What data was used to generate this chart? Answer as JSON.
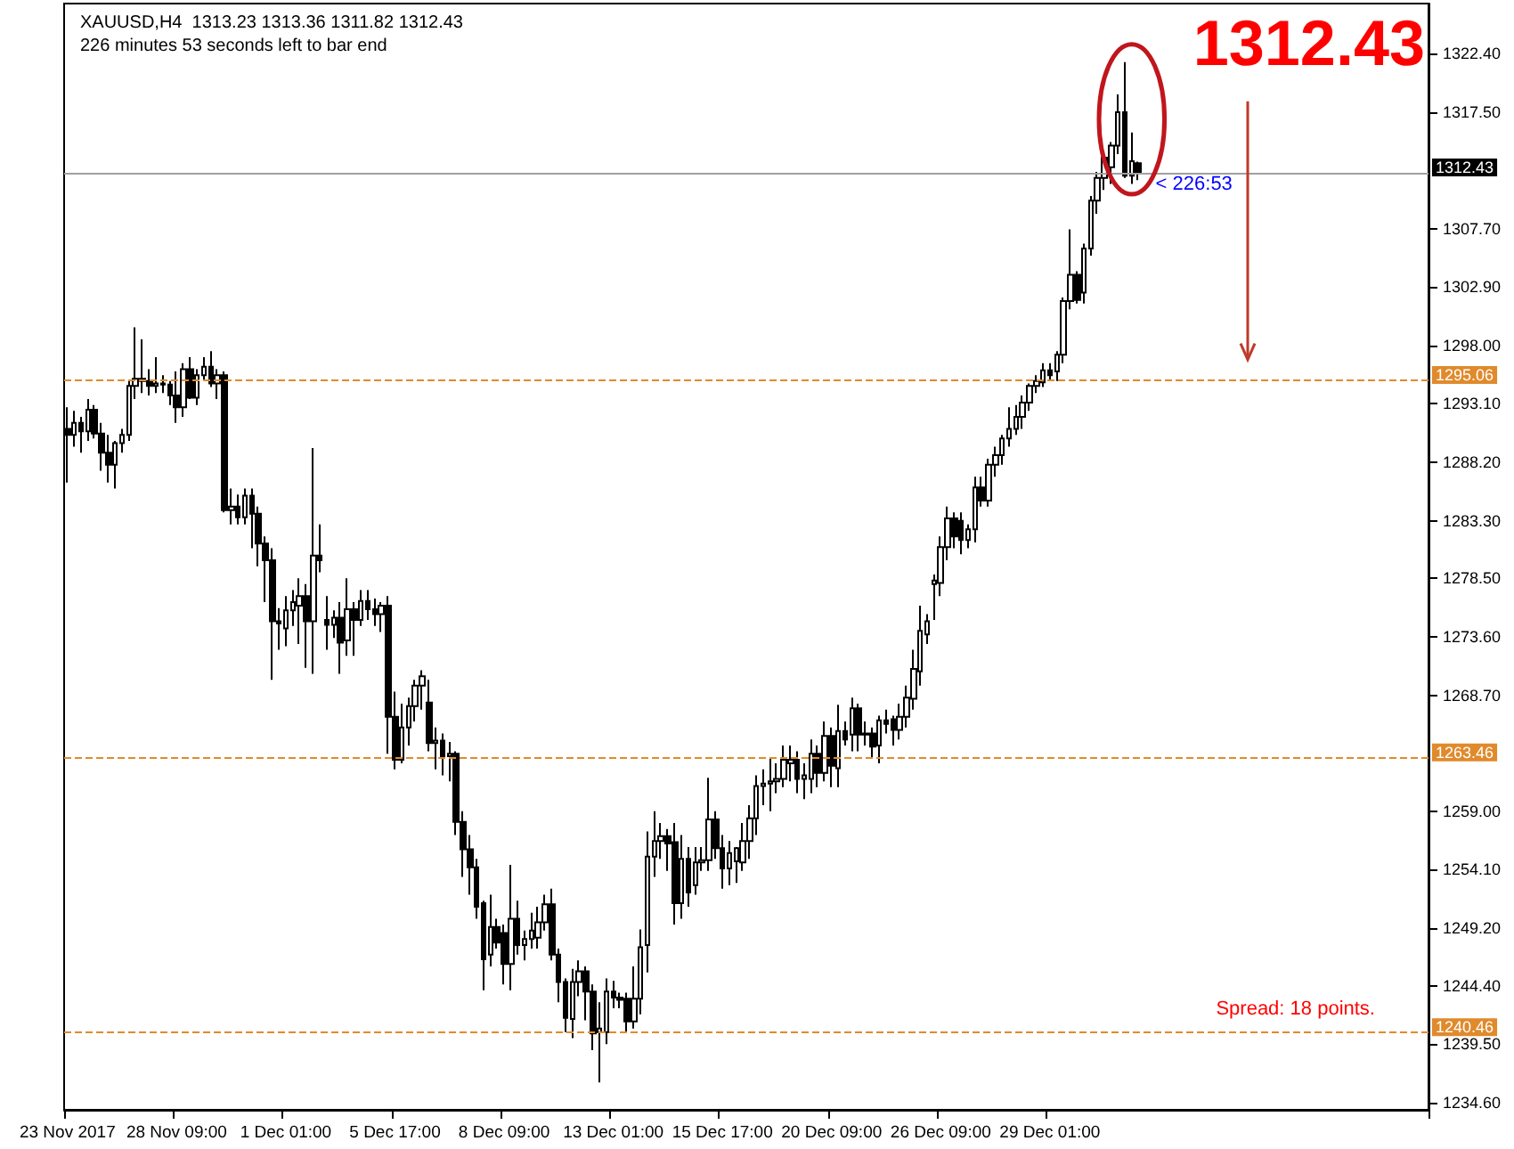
{
  "chart_data": {
    "type": "candlestick",
    "title": "XAUUSD,H4  1313.23 1313.36 1311.82 1312.43",
    "subtitle": "226 minutes 53 seconds left to bar end",
    "categories": [
      "23 Nov 2017",
      null,
      null,
      null,
      null,
      null,
      null,
      null,
      null,
      null,
      null,
      null,
      null,
      null,
      null,
      null,
      "28 Nov 09:00",
      null,
      null,
      null,
      null,
      null,
      null,
      null,
      null,
      null,
      null,
      null,
      null,
      null,
      null,
      null,
      "1 Dec 01:00",
      null,
      null,
      null,
      null,
      null,
      null,
      null,
      null,
      null,
      null,
      null,
      null,
      null,
      null,
      null,
      "5 Dec 17:00",
      null,
      null,
      null,
      null,
      null,
      null,
      null,
      null,
      null,
      null,
      null,
      null,
      null,
      null,
      null,
      "8 Dec 09:00",
      null,
      null,
      null,
      null,
      null,
      null,
      null,
      null,
      null,
      null,
      null,
      null,
      null,
      null,
      null,
      "13 Dec 01:00",
      null,
      null,
      null,
      null,
      null,
      null,
      null,
      null,
      null,
      null,
      null,
      null,
      null,
      null,
      null,
      "15 Dec 17:00",
      null,
      null,
      null,
      null,
      null,
      null,
      null,
      null,
      null,
      null,
      null,
      null,
      null,
      null,
      null,
      "20 Dec 09:00",
      null,
      null,
      null,
      null,
      null,
      null,
      null,
      null,
      null,
      null,
      null,
      null,
      null,
      null,
      null,
      "26 Dec 09:00",
      null,
      null,
      null,
      null,
      null,
      null,
      null,
      null,
      null,
      null,
      null,
      null,
      null,
      null,
      null,
      "29 Dec 01:00",
      null,
      null,
      null,
      null,
      null,
      null,
      null,
      null,
      null,
      null,
      null,
      null,
      null,
      null,
      null,
      null,
      null,
      null,
      null,
      null,
      null,
      null,
      null,
      null,
      null,
      null,
      null,
      null,
      null,
      null,
      null,
      null,
      null,
      null,
      null,
      null,
      null,
      null,
      null,
      null,
      null,
      null,
      null,
      null,
      null,
      null,
      null,
      null,
      null,
      null,
      null,
      null,
      null,
      null,
      null
    ],
    "ohlc": [
      [
        1291.0,
        1292.8,
        1286.5,
        1290.5
      ],
      [
        1290.5,
        1292.5,
        1289.5,
        1291.5
      ],
      [
        1291.5,
        1292.0,
        1289.0,
        1290.8
      ],
      [
        1290.8,
        1293.5,
        1290.0,
        1292.6
      ],
      [
        1292.6,
        1293.0,
        1290.2,
        1290.6
      ],
      [
        1290.6,
        1291.5,
        1287.5,
        1289.0
      ],
      [
        1289.0,
        1290.5,
        1286.5,
        1288.0
      ],
      [
        1288.0,
        1290.0,
        1286.0,
        1289.8
      ],
      [
        1289.8,
        1291.0,
        1289.0,
        1290.5
      ],
      [
        1290.5,
        1295.0,
        1290.0,
        1294.6
      ],
      [
        1294.6,
        1299.5,
        1293.5,
        1295.2
      ],
      [
        1295.2,
        1298.5,
        1294.0,
        1295.0
      ],
      [
        1295.0,
        1296.0,
        1293.8,
        1294.6
      ],
      [
        1294.6,
        1297.0,
        1294.0,
        1294.8
      ],
      [
        1294.8,
        1295.5,
        1294.0,
        1294.7
      ],
      [
        1294.7,
        1295.0,
        1293.0,
        1293.8
      ],
      [
        1293.8,
        1295.8,
        1291.5,
        1292.8
      ],
      [
        1292.8,
        1296.5,
        1292.0,
        1296.0
      ],
      [
        1296.0,
        1297.0,
        1293.5,
        1293.6
      ],
      [
        1293.6,
        1296.0,
        1293.0,
        1295.5
      ],
      [
        1295.5,
        1297.0,
        1295.0,
        1296.2
      ],
      [
        1296.2,
        1297.5,
        1294.5,
        1294.8
      ],
      [
        1294.8,
        1296.0,
        1293.5,
        1295.5
      ],
      [
        1295.5,
        1295.8,
        1284.0,
        1284.2
      ],
      [
        1284.2,
        1286.0,
        1283.0,
        1284.5
      ],
      [
        1284.5,
        1285.5,
        1283.0,
        1283.6
      ],
      [
        1283.6,
        1286.0,
        1283.0,
        1285.4
      ],
      [
        1285.4,
        1286.0,
        1281.0,
        1283.9
      ],
      [
        1283.9,
        1284.5,
        1279.5,
        1281.4
      ],
      [
        1281.4,
        1282.0,
        1276.5,
        1280.0
      ],
      [
        1280.0,
        1281.0,
        1270.0,
        1274.9
      ],
      [
        1274.9,
        1276.0,
        1272.5,
        1274.7
      ],
      [
        1274.3,
        1277.0,
        1272.8,
        1275.8
      ],
      [
        1275.8,
        1277.5,
        1274.5,
        1276.5
      ],
      [
        1276.2,
        1278.5,
        1273.0,
        1277.0
      ],
      [
        1277.0,
        1278.0,
        1271.0,
        1274.9
      ],
      [
        1274.9,
        1289.4,
        1270.5,
        1280.4
      ],
      [
        1280.4,
        1283.0,
        1279.0,
        1280.0
      ],
      [
        1275.0,
        1277.0,
        1272.5,
        1274.6
      ],
      [
        1274.6,
        1275.8,
        1273.5,
        1275.2
      ],
      [
        1275.2,
        1276.5,
        1270.5,
        1273.1
      ],
      [
        1273.3,
        1278.5,
        1272.0,
        1275.9
      ],
      [
        1275.9,
        1276.5,
        1272.0,
        1275.0
      ],
      [
        1275.0,
        1277.5,
        1274.5,
        1276.6
      ],
      [
        1276.6,
        1277.5,
        1275.0,
        1275.9
      ],
      [
        1275.9,
        1276.8,
        1274.5,
        1275.5
      ],
      [
        1275.5,
        1276.5,
        1274.0,
        1276.2
      ],
      [
        1276.2,
        1277.0,
        1263.8,
        1266.9
      ],
      [
        1266.9,
        1269.0,
        1262.5,
        1263.3
      ],
      [
        1263.3,
        1268.0,
        1263.0,
        1266.0
      ],
      [
        1266.0,
        1268.5,
        1264.5,
        1267.8
      ],
      [
        1267.8,
        1270.0,
        1266.5,
        1269.5
      ],
      [
        1269.5,
        1270.8,
        1267.5,
        1270.3
      ],
      [
        1268.1,
        1270.0,
        1264.0,
        1264.7
      ],
      [
        1264.7,
        1266.0,
        1262.5,
        1264.9
      ],
      [
        1264.9,
        1265.5,
        1262.0,
        1263.6
      ],
      [
        1263.6,
        1264.8,
        1261.5,
        1263.8
      ],
      [
        1263.8,
        1264.0,
        1257.0,
        1258.1
      ],
      [
        1258.1,
        1259.0,
        1253.5,
        1255.8
      ],
      [
        1255.8,
        1257.0,
        1252.0,
        1254.3
      ],
      [
        1254.3,
        1255.0,
        1250.0,
        1251.0
      ],
      [
        1251.3,
        1251.5,
        1244.0,
        1246.6
      ],
      [
        1247.0,
        1252.0,
        1246.0,
        1249.3
      ],
      [
        1249.3,
        1250.0,
        1247.5,
        1248.0
      ],
      [
        1248.8,
        1249.5,
        1244.5,
        1246.2
      ],
      [
        1246.2,
        1254.5,
        1244.0,
        1250.0
      ],
      [
        1250.0,
        1251.5,
        1247.0,
        1247.8
      ],
      [
        1247.8,
        1249.0,
        1246.5,
        1248.3
      ],
      [
        1248.3,
        1250.5,
        1247.5,
        1249.0
      ],
      [
        1248.4,
        1251.0,
        1247.5,
        1249.7
      ],
      [
        1249.7,
        1252.0,
        1249.0,
        1251.2
      ],
      [
        1251.2,
        1252.5,
        1246.5,
        1247.0
      ],
      [
        1247.0,
        1247.5,
        1243.0,
        1244.7
      ],
      [
        1244.7,
        1245.0,
        1240.5,
        1241.7
      ],
      [
        1241.6,
        1245.8,
        1240.0,
        1244.7
      ],
      [
        1244.7,
        1246.5,
        1243.5,
        1245.6
      ],
      [
        1245.6,
        1246.0,
        1241.5,
        1243.9
      ],
      [
        1243.9,
        1244.5,
        1239.0,
        1240.4
      ],
      [
        1240.5,
        1243.0,
        1236.3,
        1240.8
      ],
      [
        1240.5,
        1245.0,
        1239.5,
        1243.9
      ],
      [
        1243.9,
        1244.8,
        1242.5,
        1243.4
      ],
      [
        1243.4,
        1243.8,
        1242.5,
        1243.2
      ],
      [
        1243.3,
        1243.8,
        1240.5,
        1241.4
      ],
      [
        1241.4,
        1246.0,
        1240.8,
        1243.3
      ],
      [
        1243.3,
        1249.1,
        1242.0,
        1247.6
      ],
      [
        1247.8,
        1257.3,
        1245.5,
        1255.2
      ],
      [
        1255.2,
        1259.0,
        1253.5,
        1256.5
      ],
      [
        1256.5,
        1258.0,
        1255.0,
        1256.9
      ],
      [
        1256.9,
        1257.5,
        1254.0,
        1256.3
      ],
      [
        1256.4,
        1258.0,
        1249.5,
        1251.3
      ],
      [
        1251.3,
        1257.0,
        1250.0,
        1255.0
      ],
      [
        1255.0,
        1256.0,
        1251.0,
        1252.2
      ],
      [
        1252.8,
        1256.0,
        1252.0,
        1254.7
      ],
      [
        1254.7,
        1256.0,
        1254.0,
        1254.9
      ],
      [
        1254.9,
        1261.8,
        1254.0,
        1258.3
      ],
      [
        1258.3,
        1259.0,
        1255.0,
        1255.9
      ],
      [
        1255.9,
        1257.0,
        1252.5,
        1254.2
      ],
      [
        1254.2,
        1256.5,
        1252.8,
        1255.5
      ],
      [
        1254.8,
        1256.0,
        1253.0,
        1255.9
      ],
      [
        1254.7,
        1258.0,
        1254.0,
        1256.5
      ],
      [
        1256.5,
        1259.5,
        1255.0,
        1258.4
      ],
      [
        1258.4,
        1262.0,
        1257.0,
        1261.1
      ],
      [
        1261.1,
        1262.5,
        1259.5,
        1261.3
      ],
      [
        1261.3,
        1263.5,
        1259.0,
        1261.5
      ],
      [
        1261.5,
        1263.0,
        1260.5,
        1261.7
      ],
      [
        1261.7,
        1264.5,
        1261.0,
        1263.3
      ],
      [
        1263.0,
        1264.5,
        1261.5,
        1263.3
      ],
      [
        1263.3,
        1264.0,
        1260.5,
        1261.7
      ],
      [
        1261.7,
        1263.0,
        1260.0,
        1262.0
      ],
      [
        1261.7,
        1265.0,
        1260.5,
        1263.8
      ],
      [
        1263.8,
        1264.5,
        1261.0,
        1262.2
      ],
      [
        1262.2,
        1266.5,
        1261.5,
        1265.3
      ],
      [
        1265.3,
        1266.0,
        1261.0,
        1262.8
      ],
      [
        1262.6,
        1267.9,
        1261.0,
        1265.7
      ],
      [
        1265.7,
        1266.5,
        1264.5,
        1265.0
      ],
      [
        1265.4,
        1268.5,
        1264.0,
        1267.6
      ],
      [
        1267.6,
        1268.0,
        1264.0,
        1265.4
      ],
      [
        1265.4,
        1266.5,
        1264.5,
        1265.5
      ],
      [
        1265.5,
        1266.0,
        1263.5,
        1264.4
      ],
      [
        1264.5,
        1267.0,
        1263.0,
        1266.6
      ],
      [
        1266.6,
        1267.5,
        1265.5,
        1266.3
      ],
      [
        1266.7,
        1267.0,
        1264.5,
        1265.8
      ],
      [
        1265.8,
        1268.0,
        1265.0,
        1266.9
      ],
      [
        1266.9,
        1269.5,
        1266.0,
        1268.5
      ],
      [
        1268.4,
        1272.5,
        1267.5,
        1270.9
      ],
      [
        1270.7,
        1276.2,
        1269.5,
        1274.1
      ],
      [
        1273.8,
        1275.5,
        1273.0,
        1274.9
      ],
      [
        1278.0,
        1278.8,
        1275.0,
        1278.3
      ],
      [
        1278.1,
        1282.0,
        1277.0,
        1281.1
      ],
      [
        1281.1,
        1284.5,
        1280.0,
        1283.5
      ],
      [
        1283.5,
        1284.0,
        1281.0,
        1282.0
      ],
      [
        1283.3,
        1284.0,
        1280.5,
        1281.7
      ],
      [
        1281.7,
        1283.0,
        1281.0,
        1282.6
      ],
      [
        1282.6,
        1287.0,
        1281.5,
        1286.1
      ],
      [
        1286.1,
        1287.0,
        1284.5,
        1285.0
      ],
      [
        1285.0,
        1288.5,
        1284.5,
        1288.0
      ],
      [
        1288.0,
        1289.5,
        1287.0,
        1288.8
      ],
      [
        1288.8,
        1290.5,
        1288.0,
        1290.2
      ],
      [
        1290.2,
        1292.8,
        1289.5,
        1291.0
      ],
      [
        1291.0,
        1293.0,
        1290.5,
        1292.0
      ],
      [
        1292.0,
        1293.8,
        1291.0,
        1293.2
      ],
      [
        1293.2,
        1294.8,
        1292.5,
        1294.6
      ],
      [
        1294.6,
        1295.5,
        1294.0,
        1295.0
      ],
      [
        1294.9,
        1296.5,
        1294.5,
        1295.9
      ],
      [
        1295.9,
        1296.5,
        1295.0,
        1295.5
      ],
      [
        1295.8,
        1297.5,
        1295.0,
        1297.2
      ],
      [
        1297.2,
        1302.0,
        1296.5,
        1301.7
      ],
      [
        1301.7,
        1307.7,
        1301.0,
        1303.9
      ],
      [
        1303.9,
        1304.2,
        1301.5,
        1301.8
      ],
      [
        1302.4,
        1306.5,
        1301.5,
        1306.1
      ],
      [
        1306.1,
        1310.5,
        1305.5,
        1310.1
      ],
      [
        1310.1,
        1312.5,
        1309.0,
        1312.0
      ],
      [
        1312.0,
        1314.0,
        1311.0,
        1313.7
      ],
      [
        1312.9,
        1315.0,
        1311.5,
        1314.7
      ],
      [
        1314.7,
        1319.0,
        1314.0,
        1317.5
      ],
      [
        1317.5,
        1321.7,
        1312.0,
        1312.2
      ],
      [
        1312.2,
        1315.8,
        1311.5,
        1313.4
      ],
      [
        1313.23,
        1313.36,
        1311.82,
        1312.43
      ],
      null,
      null,
      null,
      null,
      null,
      null,
      null,
      null,
      null,
      null,
      null,
      null,
      null,
      null,
      null,
      null,
      null,
      null,
      null,
      null,
      null,
      null,
      null,
      null,
      null,
      null,
      null,
      null,
      null,
      null,
      null,
      null,
      null,
      null,
      null,
      null,
      null,
      null,
      null,
      null,
      null,
      null
    ],
    "ylim": [
      1234.0,
      1326.6
    ],
    "yticks": [
      {
        "value": 1322.4,
        "label": "1322.40"
      },
      {
        "value": 1317.5,
        "label": "1317.50"
      },
      {
        "value": 1307.7,
        "label": "1307.70"
      },
      {
        "value": 1302.9,
        "label": "1302.90"
      },
      {
        "value": 1298.0,
        "label": "1298.00"
      },
      {
        "value": 1293.1,
        "label": "1293.10"
      },
      {
        "value": 1288.2,
        "label": "1288.20"
      },
      {
        "value": 1283.3,
        "label": "1283.30"
      },
      {
        "value": 1278.5,
        "label": "1278.50"
      },
      {
        "value": 1273.6,
        "label": "1273.60"
      },
      {
        "value": 1268.7,
        "label": "1268.70"
      },
      {
        "value": 1259.0,
        "label": "1259.00"
      },
      {
        "value": 1254.1,
        "label": "1254.10"
      },
      {
        "value": 1249.2,
        "label": "1249.20"
      },
      {
        "value": 1244.4,
        "label": "1244.40"
      },
      {
        "value": 1239.5,
        "label": "1239.50"
      },
      {
        "value": 1234.6,
        "label": "1234.60"
      }
    ],
    "ref_lines": [
      {
        "axis": "y",
        "value": 1312.43,
        "label": "1312.43",
        "color": "#a0a0a0",
        "line_style": "solid"
      },
      {
        "axis": "y",
        "value": 1295.06,
        "label": "1295.06",
        "color": "#e08a2c",
        "line_style": "dashed"
      },
      {
        "axis": "y",
        "value": 1263.46,
        "label": "1263.46",
        "color": "#e08a2c",
        "line_style": "dashed"
      },
      {
        "axis": "y",
        "value": 1240.46,
        "label": "1240.46",
        "color": "#e08a2c",
        "line_style": "dashed"
      }
    ],
    "annotations": [
      "1312.43",
      {
        "text": "< 226:53",
        "y": 1312.43
      },
      "Spread: 18 points."
    ],
    "grid": false
  }
}
